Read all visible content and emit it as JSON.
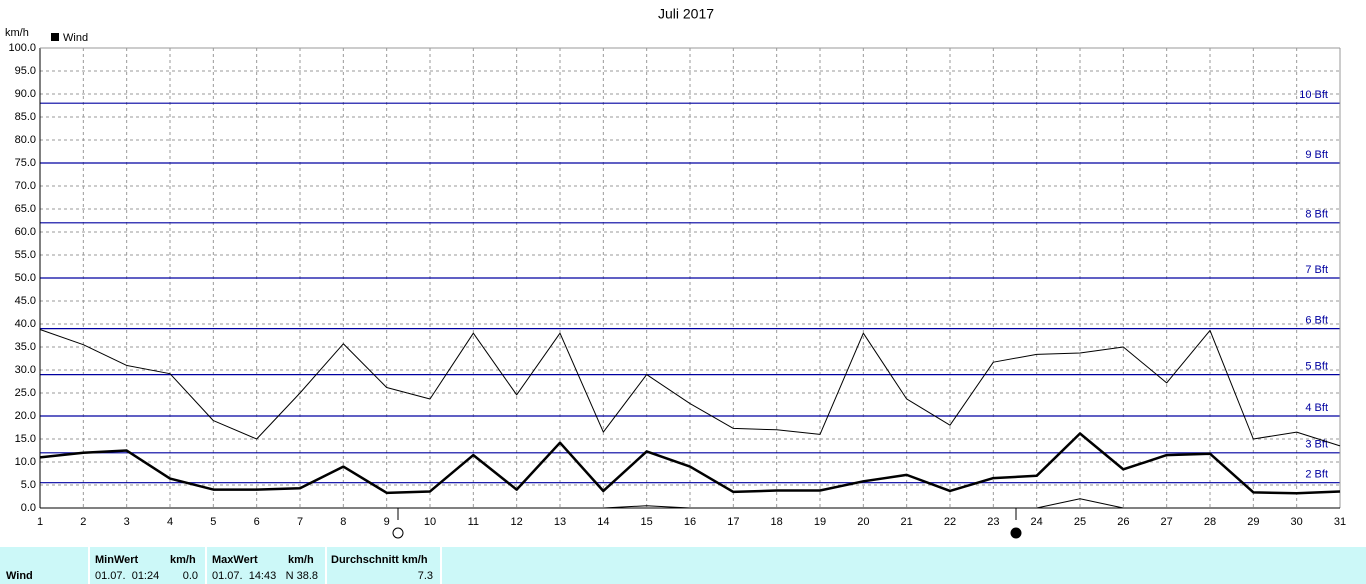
{
  "chart_data": {
    "type": "line",
    "title": "Juli 2017",
    "y_label": "km/h",
    "x": [
      1,
      2,
      3,
      4,
      5,
      6,
      7,
      8,
      9,
      10,
      11,
      12,
      13,
      14,
      15,
      16,
      17,
      18,
      19,
      20,
      21,
      22,
      23,
      24,
      25,
      26,
      27,
      28,
      29,
      30,
      31
    ],
    "series": [
      {
        "color": "#000000",
        "width": 1,
        "values": [
          38.8,
          35.5,
          31,
          29.2,
          19,
          15,
          25,
          35.7,
          26.2,
          23.7,
          38,
          24.6,
          38,
          16.5,
          29,
          22.7,
          17.3,
          17,
          16,
          38,
          23.7,
          18,
          31.7,
          33.4,
          33.7,
          35,
          27.2,
          38.6,
          15,
          16.5,
          13.5
        ]
      },
      {
        "name": "Wind",
        "color": "#000000",
        "width": 2.5,
        "values": [
          11,
          12,
          12.5,
          6.4,
          4,
          4,
          4.3,
          9,
          3.3,
          3.6,
          11.5,
          4,
          14.2,
          3.7,
          12.3,
          9,
          3.5,
          3.8,
          3.8,
          5.8,
          7.2,
          3.7,
          6.5,
          7,
          16.2,
          8.4,
          11.5,
          11.8,
          3.4,
          3.2,
          3.6
        ]
      },
      {
        "color": "#000000",
        "width": 1,
        "values": [
          0,
          0,
          0,
          0,
          0,
          0,
          0,
          0,
          0,
          0,
          0,
          0,
          0,
          0,
          0.5,
          0,
          0,
          0,
          0,
          0,
          0,
          0,
          0,
          0,
          2,
          0,
          0,
          0,
          0,
          0,
          0
        ]
      }
    ],
    "xlim": [
      1,
      31
    ],
    "xticks": [
      1,
      2,
      3,
      4,
      5,
      6,
      7,
      8,
      9,
      10,
      11,
      12,
      13,
      14,
      15,
      16,
      17,
      18,
      19,
      20,
      21,
      22,
      23,
      24,
      25,
      26,
      27,
      28,
      29,
      30,
      31
    ],
    "ylim": [
      0,
      100
    ],
    "yticks": [
      {
        "value": 0,
        "label": "0.0"
      },
      {
        "value": 5,
        "label": "5.0"
      },
      {
        "value": 10,
        "label": "10.0"
      },
      {
        "value": 15,
        "label": "15.0"
      },
      {
        "value": 20,
        "label": "20.0"
      },
      {
        "value": 25,
        "label": "25.0"
      },
      {
        "value": 30,
        "label": "30.0"
      },
      {
        "value": 35,
        "label": "35.0"
      },
      {
        "value": 40,
        "label": "40.0"
      },
      {
        "value": 45,
        "label": "45.0"
      },
      {
        "value": 50,
        "label": "50.0"
      },
      {
        "value": 55,
        "label": "55.0"
      },
      {
        "value": 60,
        "label": "60.0"
      },
      {
        "value": 65,
        "label": "65.0"
      },
      {
        "value": 70,
        "label": "70.0"
      },
      {
        "value": 75,
        "label": "75.0"
      },
      {
        "value": 80,
        "label": "80.0"
      },
      {
        "value": 85,
        "label": "85.0"
      },
      {
        "value": 90,
        "label": "90.0"
      },
      {
        "value": 95,
        "label": "95.0"
      },
      {
        "value": 100,
        "label": "100.0"
      }
    ],
    "grid": true,
    "reference_lines": [
      {
        "value": 5.5,
        "label": "2 Bft"
      },
      {
        "value": 12,
        "label": "3 Bft"
      },
      {
        "value": 20,
        "label": "4 Bft"
      },
      {
        "value": 29,
        "label": "5 Bft"
      },
      {
        "value": 39,
        "label": "6 Bft"
      },
      {
        "value": 50,
        "label": "7 Bft"
      },
      {
        "value": 62,
        "label": "8 Bft"
      },
      {
        "value": 75,
        "label": "9 Bft"
      },
      {
        "value": 88,
        "label": "10 Bft"
      }
    ],
    "reference_color": "#0000a0"
  },
  "table": {
    "row_label": "Wind",
    "headers": [
      "MinWert",
      "km/h",
      "MaxWert",
      "km/h",
      "Durchschnitt km/h"
    ],
    "values": [
      "01.07.  01:24",
      "0.0",
      "01.07.  14:43",
      "N 38.8",
      "7.3"
    ]
  }
}
